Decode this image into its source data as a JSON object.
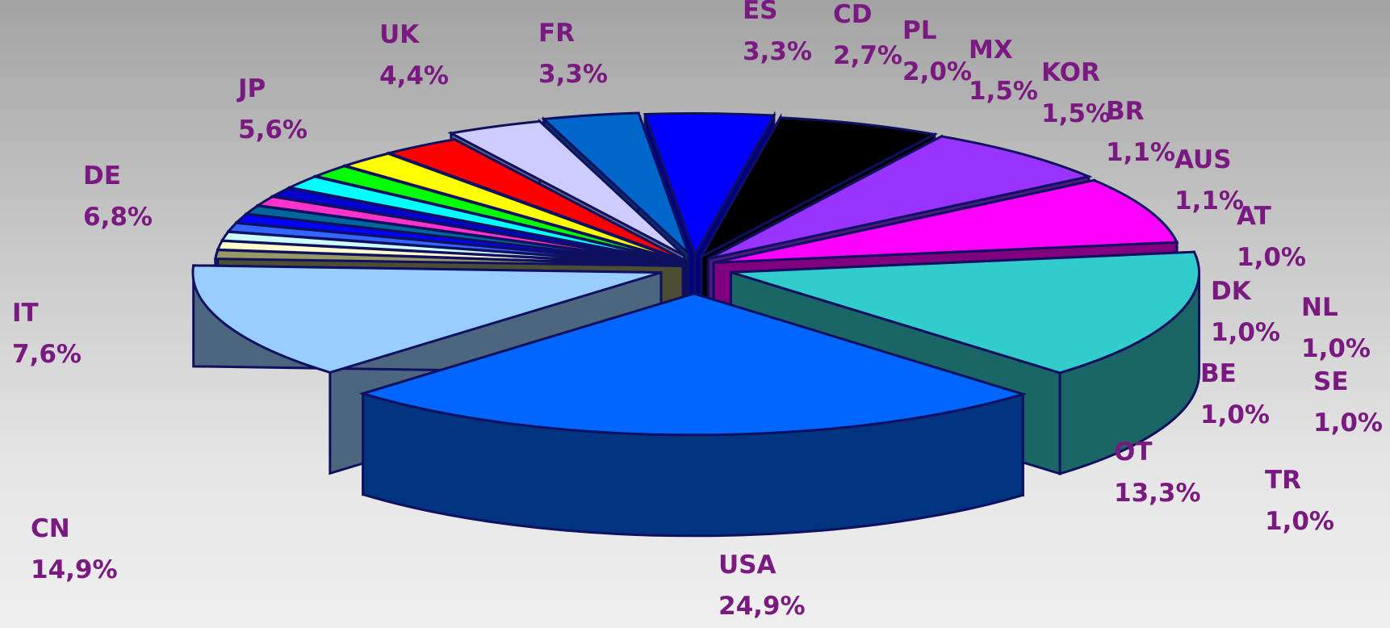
{
  "chart_data": {
    "type": "pie",
    "style": "3d-exploded",
    "slices": [
      {
        "label": "USA",
        "value_label": "24,9%",
        "value": 24.9,
        "color": "#0066ff",
        "side_color": "#003380"
      },
      {
        "label": "CN",
        "value_label": "14,9%",
        "value": 14.9,
        "color": "#33cccc",
        "side_color": "#1a6666"
      },
      {
        "label": "IT",
        "value_label": "7,6%",
        "value": 7.6,
        "color": "#ff00ff",
        "side_color": "#800080"
      },
      {
        "label": "DE",
        "value_label": "6,8%",
        "value": 6.8,
        "color": "#9933ff",
        "side_color": "#4d1a80"
      },
      {
        "label": "JP",
        "value_label": "5,6%",
        "value": 5.6,
        "color": "#000000",
        "side_color": "#000000"
      },
      {
        "label": "UK",
        "value_label": "4,4%",
        "value": 4.4,
        "color": "#0000ff",
        "side_color": "#000080"
      },
      {
        "label": "FR",
        "value_label": "3,3%",
        "value": 3.3,
        "color": "#0066cc",
        "side_color": "#003366"
      },
      {
        "label": "ES",
        "value_label": "3,3%",
        "value": 3.3,
        "color": "#ccccff",
        "side_color": "#666680"
      },
      {
        "label": "CD",
        "value_label": "2,7%",
        "value": 2.7,
        "color": "#ff0000",
        "side_color": "#800000"
      },
      {
        "label": "PL",
        "value_label": "2,0%",
        "value": 2.0,
        "color": "#ffff00",
        "side_color": "#808000"
      },
      {
        "label": "MX",
        "value_label": "1,5%",
        "value": 1.5,
        "color": "#00ff00",
        "side_color": "#008000"
      },
      {
        "label": "KOR",
        "value_label": "1,5%",
        "value": 1.5,
        "color": "#00ffff",
        "side_color": "#008080"
      },
      {
        "label": "BR",
        "value_label": "1,1%",
        "value": 1.1,
        "color": "#0000cc",
        "side_color": "#000066"
      },
      {
        "label": "AUS",
        "value_label": "1,1%",
        "value": 1.1,
        "color": "#ff33cc",
        "side_color": "#801a66"
      },
      {
        "label": "AT",
        "value_label": "1,0%",
        "value": 1.0,
        "color": "#006699",
        "side_color": "#00334d"
      },
      {
        "label": "DK",
        "value_label": "1,0%",
        "value": 1.0,
        "color": "#0000ff",
        "side_color": "#000080"
      },
      {
        "label": "NL",
        "value_label": "1,0%",
        "value": 1.0,
        "color": "#3366ff",
        "side_color": "#1a3380"
      },
      {
        "label": "BE",
        "value_label": "1,0%",
        "value": 1.0,
        "color": "#ccffff",
        "side_color": "#668080"
      },
      {
        "label": "SE",
        "value_label": "1,0%",
        "value": 1.0,
        "color": "#ffffcc",
        "side_color": "#808066"
      },
      {
        "label": "TR",
        "value_label": "1,0%",
        "value": 1.0,
        "color": "#999966",
        "side_color": "#4d4d33"
      },
      {
        "label": "OT",
        "value_label": "13,3%",
        "value": 13.3,
        "color": "#99ccff",
        "side_color": "#4d6680"
      }
    ],
    "label_color": "#7a1a80"
  }
}
